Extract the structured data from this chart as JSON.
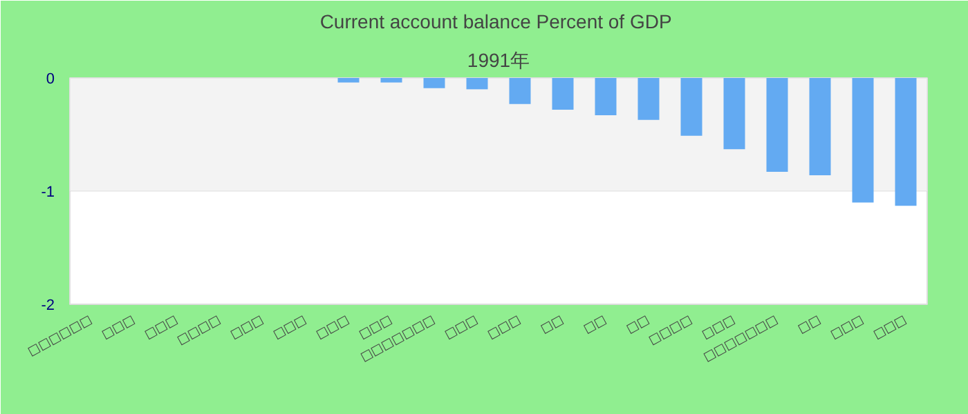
{
  "chart_data": {
    "type": "bar",
    "title": "Current account balance  Percent of GDP",
    "subtitle": "1991年",
    "categories": [
      "□□□□□□",
      "□□□",
      "□□□",
      "□□□□",
      "□□□",
      "□□□",
      "□□□",
      "□□□",
      "□□□□□□□",
      "□□□",
      "□□□",
      "□□",
      "□□",
      "□□",
      "□□□□",
      "□□□",
      "□□□□□□□",
      "□□",
      "□□□",
      "□□□"
    ],
    "values": [
      null,
      null,
      null,
      null,
      null,
      null,
      -0.04,
      -0.04,
      -0.09,
      -0.1,
      -0.23,
      -0.28,
      -0.33,
      -0.37,
      -0.51,
      -0.63,
      -0.83,
      -0.86,
      -1.1,
      -1.13
    ],
    "color": "#63aaf2",
    "ylim": [
      -2,
      0
    ],
    "yticks": [
      -2,
      -1,
      0
    ],
    "grid": false,
    "bands": [
      {
        "axis": "y",
        "from": -1,
        "to": 0,
        "color": "#f3f3f3"
      }
    ]
  }
}
